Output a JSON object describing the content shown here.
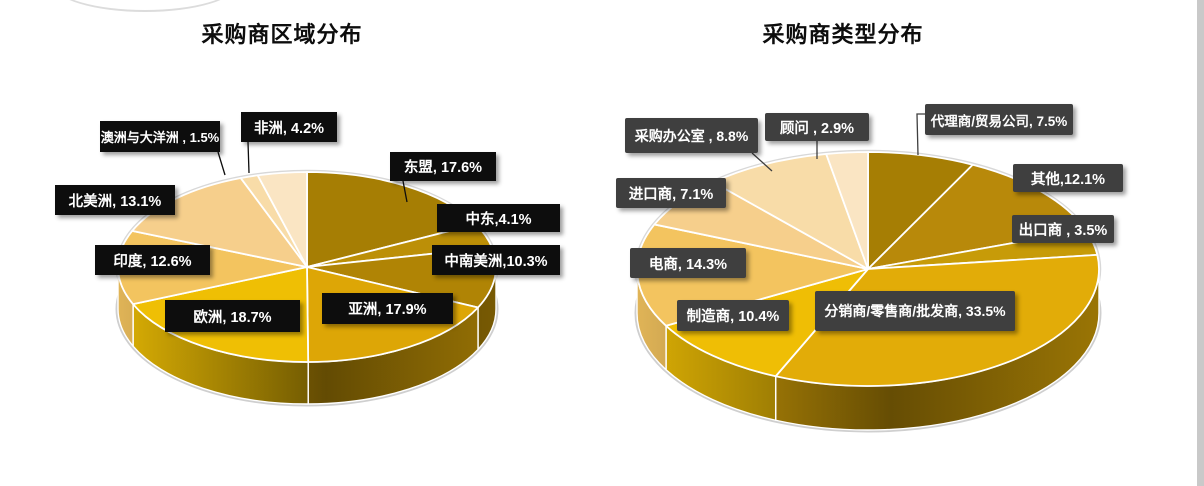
{
  "page": {
    "background": "#ffffff",
    "right_edge_strip_color": "#c9c9c9"
  },
  "chart_data": [
    {
      "type": "pie",
      "projection": "3d",
      "title": "采购商区域分布",
      "legend": "none",
      "start_angle_deg": 0,
      "direction": "clockwise",
      "label_style": {
        "background": "#0d0d0d",
        "text": "#ffffff"
      },
      "slices": [
        {
          "name": "东盟",
          "value": 17.6,
          "label": "东盟, 17.6%",
          "color": "#A67E04"
        },
        {
          "name": "中东",
          "value": 4.1,
          "label": "中东,4.1%",
          "color": "#BC8F07"
        },
        {
          "name": "中南美洲",
          "value": 10.3,
          "label": "中南美洲,10.3%",
          "color": "#B08405"
        },
        {
          "name": "亚洲",
          "value": 17.9,
          "label": "亚洲, 17.9%",
          "color": "#DDA606"
        },
        {
          "name": "欧洲",
          "value": 18.7,
          "label": "欧洲, 18.7%",
          "color": "#EFBF04"
        },
        {
          "name": "印度",
          "value": 12.6,
          "label": "印度, 12.6%",
          "color": "#F3C45F"
        },
        {
          "name": "北美洲",
          "value": 13.1,
          "label": "北美洲, 13.1%",
          "color": "#F6CF8C"
        },
        {
          "name": "澳洲与大洋洲",
          "value": 1.5,
          "label": "澳洲与大洋洲 , 1.5%",
          "color": "#F8DCA8"
        },
        {
          "name": "非洲",
          "value": 4.2,
          "label": "非洲, 4.2%",
          "color": "#FAE5C3"
        }
      ]
    },
    {
      "type": "pie",
      "projection": "3d",
      "title": "采购商类型分布",
      "legend": "none",
      "start_angle_deg": 0,
      "direction": "clockwise",
      "label_style": {
        "background": "#3F3F3F",
        "text": "#ffffff"
      },
      "slices": [
        {
          "name": "代理商/贸易公司",
          "value": 7.5,
          "label": "代理商/贸易公司, 7.5%",
          "color": "#A67E04"
        },
        {
          "name": "其他",
          "value": 12.1,
          "label": "其他,12.1%",
          "color": "#B8890A"
        },
        {
          "name": "出口商",
          "value": 3.5,
          "label": "出口商 , 3.5%",
          "color": "#C79B08"
        },
        {
          "name": "分销商/零售商/批发商",
          "value": 33.5,
          "label": "分销商/零售商/批发商, 33.5%",
          "color": "#E2AC08"
        },
        {
          "name": "制造商",
          "value": 10.4,
          "label": "制造商, 10.4%",
          "color": "#EFBE05"
        },
        {
          "name": "电商",
          "value": 14.3,
          "label": "电商, 14.3%",
          "color": "#F3C45F"
        },
        {
          "name": "进口商",
          "value": 7.1,
          "label": "进口商, 7.1%",
          "color": "#F6CF8C"
        },
        {
          "name": "采购办公室",
          "value": 8.8,
          "label": "采购办公室 , 8.8%",
          "color": "#F8DCA8"
        },
        {
          "name": "顾问",
          "value": 2.9,
          "label": "顾问 , 2.9%",
          "color": "#FAE5C3"
        }
      ]
    }
  ]
}
